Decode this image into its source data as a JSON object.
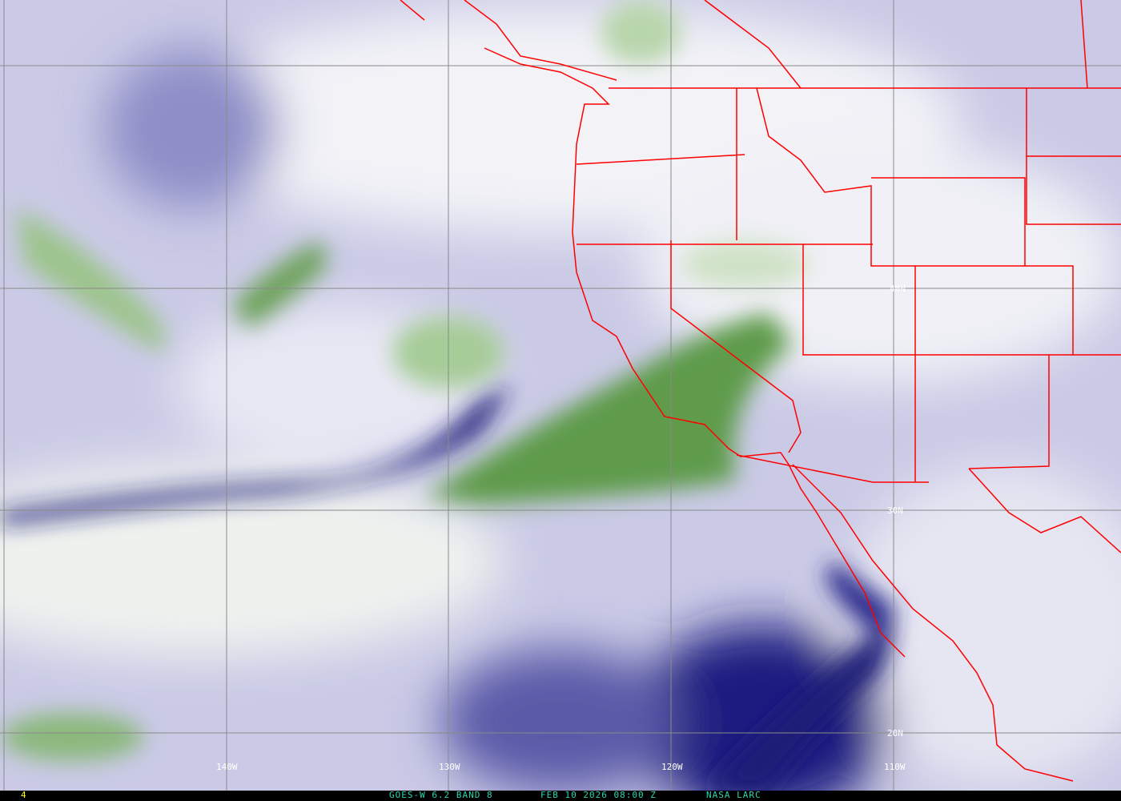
{
  "image": {
    "type": "satellite water vapor imagery",
    "colors": {
      "dry": "#1a1a7a",
      "moist_mid": "#b8b8dc",
      "moist": "#f4f4f8",
      "cloud": "#4a8a3a",
      "borders": "#ff0000",
      "grid": "#808080",
      "caption": "#2ad6b0",
      "frame_number": "#ffff00"
    }
  },
  "grid_labels": {
    "longitude": [
      "140W",
      "130W",
      "120W",
      "110W"
    ],
    "latitude": [
      "40N",
      "30N",
      "20N"
    ]
  },
  "footer": {
    "frame_number": "4",
    "satellite": "GOES-W 6.2 BAND 8",
    "datetime": "FEB 10 2026 08:00 Z",
    "source": "NASA LARC"
  }
}
